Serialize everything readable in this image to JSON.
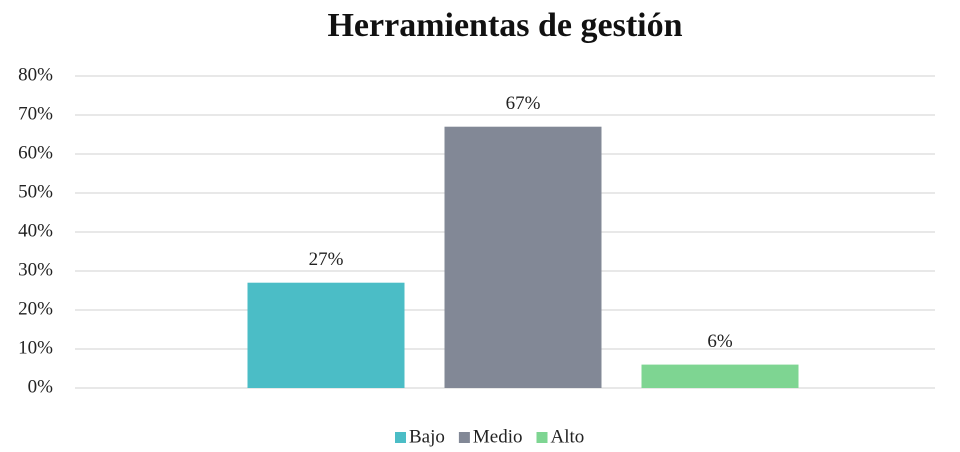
{
  "chart_data": {
    "type": "bar",
    "title": "Herramientas de gestión",
    "series": [
      {
        "name": "Bajo",
        "color": "#4bbdc6",
        "values": [
          27
        ],
        "value_labels": [
          "27%"
        ]
      },
      {
        "name": "Medio",
        "color": "#828896",
        "values": [
          67
        ],
        "value_labels": [
          "67%"
        ]
      },
      {
        "name": "Alto",
        "color": "#7ed592",
        "values": [
          6
        ],
        "value_labels": [
          "6%"
        ]
      }
    ],
    "ylim": [
      0,
      80
    ],
    "yticks": [
      {
        "value": 0,
        "label": "0%"
      },
      {
        "value": 10,
        "label": "10%"
      },
      {
        "value": 20,
        "label": "20%"
      },
      {
        "value": 30,
        "label": "30%"
      },
      {
        "value": 40,
        "label": "40%"
      },
      {
        "value": 50,
        "label": "50%"
      },
      {
        "value": 60,
        "label": "60%"
      },
      {
        "value": 70,
        "label": "70%"
      },
      {
        "value": 80,
        "label": "80%"
      }
    ],
    "grid": true,
    "legend": "bottom"
  }
}
